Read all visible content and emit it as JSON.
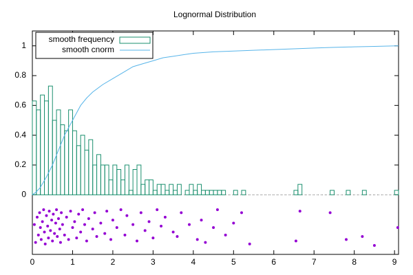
{
  "chart_data": {
    "type": "combo",
    "title": "Lognormal Distribution",
    "xlim": [
      0,
      9.1
    ],
    "ylim": [
      -0.4,
      1.1
    ],
    "xticks": [
      0,
      1,
      2,
      3,
      4,
      5,
      6,
      7,
      8,
      9
    ],
    "yticks": [
      0,
      0.2,
      0.4,
      0.6,
      0.8,
      1
    ],
    "legend": "top-left",
    "series": [
      {
        "name": "smooth frequency",
        "type": "histogram",
        "color": "#1a8f6e",
        "bins": [
          0,
          0.1,
          0.2,
          0.3,
          0.4,
          0.5,
          0.6,
          0.7,
          0.8,
          0.9,
          1,
          1.1,
          1.2,
          1.3,
          1.4,
          1.5,
          1.6,
          1.7,
          1.8,
          1.9,
          2,
          2.1,
          2.2,
          2.3,
          2.4,
          2.5,
          2.6,
          2.7,
          2.8,
          2.9,
          3,
          3.1,
          3.2,
          3.3,
          3.4,
          3.5,
          3.6,
          3.7,
          3.8,
          3.9,
          4,
          4.1,
          4.2,
          4.3,
          4.4,
          4.5,
          4.6,
          4.7,
          4.8,
          4.9,
          5,
          5.1,
          5.2,
          5.3,
          5.4,
          5.5,
          5.6,
          5.7,
          5.8,
          5.9,
          6,
          6.1,
          6.2,
          6.3,
          6.4,
          6.5,
          6.6,
          6.7,
          6.8,
          6.9,
          7,
          7.1,
          7.2,
          7.3,
          7.4,
          7.5,
          7.6,
          7.7,
          7.8,
          7.9,
          8,
          8.1,
          8.2,
          8.3,
          8.4,
          8.5,
          8.6,
          8.7,
          8.8,
          8.9,
          9,
          9.1
        ],
        "values": [
          0.63,
          0.57,
          0.67,
          0.63,
          0.73,
          0.5,
          0.57,
          0.47,
          0.43,
          0.57,
          0.43,
          0.33,
          0.4,
          0.3,
          0.37,
          0.2,
          0.27,
          0.2,
          0.2,
          0.1,
          0.2,
          0.17,
          0.1,
          0.2,
          0.03,
          0.17,
          0.2,
          0.07,
          0.1,
          0.1,
          0.03,
          0.07,
          0.07,
          0.03,
          0.07,
          0.03,
          0.07,
          0,
          0.03,
          0.07,
          0.03,
          0.07,
          0.03,
          0.03,
          0.03,
          0.03,
          0.03,
          0.03,
          0,
          0,
          0.03,
          0,
          0.03,
          0,
          0,
          0,
          0,
          0,
          0,
          0,
          0,
          0,
          0,
          0,
          0,
          0.03,
          0.07,
          0,
          0,
          0,
          0,
          0,
          0,
          0,
          0.03,
          0,
          0,
          0,
          0.03,
          0,
          0,
          0,
          0.03,
          0,
          0,
          0,
          0,
          0,
          0,
          0,
          0.03
        ]
      },
      {
        "name": "smooth cnorm",
        "type": "line",
        "color": "#56b4e9",
        "x": [
          0,
          0.1,
          0.2,
          0.35,
          0.5,
          0.65,
          0.8,
          1,
          1.2,
          1.35,
          1.5,
          1.75,
          2,
          2.25,
          2.5,
          2.75,
          3,
          3.25,
          3.5,
          3.75,
          4,
          4.5,
          5,
          5.5,
          6,
          6.5,
          7,
          7.5,
          8,
          8.5,
          9.1
        ],
        "values": [
          0,
          0.02,
          0.05,
          0.12,
          0.2,
          0.3,
          0.4,
          0.5,
          0.6,
          0.65,
          0.69,
          0.74,
          0.78,
          0.82,
          0.86,
          0.88,
          0.9,
          0.92,
          0.93,
          0.94,
          0.95,
          0.96,
          0.965,
          0.97,
          0.975,
          0.98,
          0.985,
          0.99,
          0.993,
          0.996,
          1
        ]
      },
      {
        "name": null,
        "type": "scatter",
        "color": "#9400d3",
        "x": [
          0.05,
          0.08,
          0.12,
          0.15,
          0.18,
          0.2,
          0.22,
          0.25,
          0.28,
          0.3,
          0.32,
          0.35,
          0.38,
          0.4,
          0.42,
          0.45,
          0.48,
          0.5,
          0.52,
          0.55,
          0.58,
          0.6,
          0.62,
          0.65,
          0.68,
          0.7,
          0.72,
          0.75,
          0.8,
          0.85,
          0.9,
          0.95,
          1,
          1.05,
          1.1,
          1.15,
          1.2,
          1.25,
          1.3,
          1.35,
          1.4,
          1.5,
          1.55,
          1.6,
          1.7,
          1.8,
          1.85,
          1.95,
          2,
          2.1,
          2.2,
          2.3,
          2.35,
          2.5,
          2.6,
          2.7,
          2.8,
          2.9,
          3,
          3.1,
          3.2,
          3.3,
          3.5,
          3.6,
          3.7,
          3.9,
          4.1,
          4.2,
          4.3,
          4.5,
          4.6,
          4.8,
          5,
          5.2,
          5.4,
          6.55,
          6.65,
          7.4,
          7.8,
          8.2,
          8.5,
          9.08
        ],
        "values": [
          -0.2,
          -0.32,
          -0.15,
          -0.27,
          -0.12,
          -0.22,
          -0.3,
          -0.18,
          -0.1,
          -0.25,
          -0.33,
          -0.14,
          -0.21,
          -0.29,
          -0.11,
          -0.24,
          -0.17,
          -0.31,
          -0.13,
          -0.26,
          -0.19,
          -0.1,
          -0.28,
          -0.16,
          -0.23,
          -0.32,
          -0.12,
          -0.2,
          -0.27,
          -0.15,
          -0.3,
          -0.11,
          -0.22,
          -0.18,
          -0.29,
          -0.13,
          -0.25,
          -0.1,
          -0.2,
          -0.31,
          -0.16,
          -0.23,
          -0.12,
          -0.28,
          -0.19,
          -0.26,
          -0.11,
          -0.3,
          -0.17,
          -0.22,
          -0.1,
          -0.27,
          -0.14,
          -0.2,
          -0.31,
          -0.12,
          -0.24,
          -0.18,
          -0.29,
          -0.1,
          -0.21,
          -0.15,
          -0.25,
          -0.28,
          -0.12,
          -0.2,
          -0.3,
          -0.17,
          -0.32,
          -0.22,
          -0.1,
          -0.27,
          -0.19,
          -0.12,
          -0.33,
          -0.31,
          -0.11,
          -0.12,
          -0.3,
          -0.28,
          -0.34,
          -0.22
        ]
      }
    ]
  }
}
